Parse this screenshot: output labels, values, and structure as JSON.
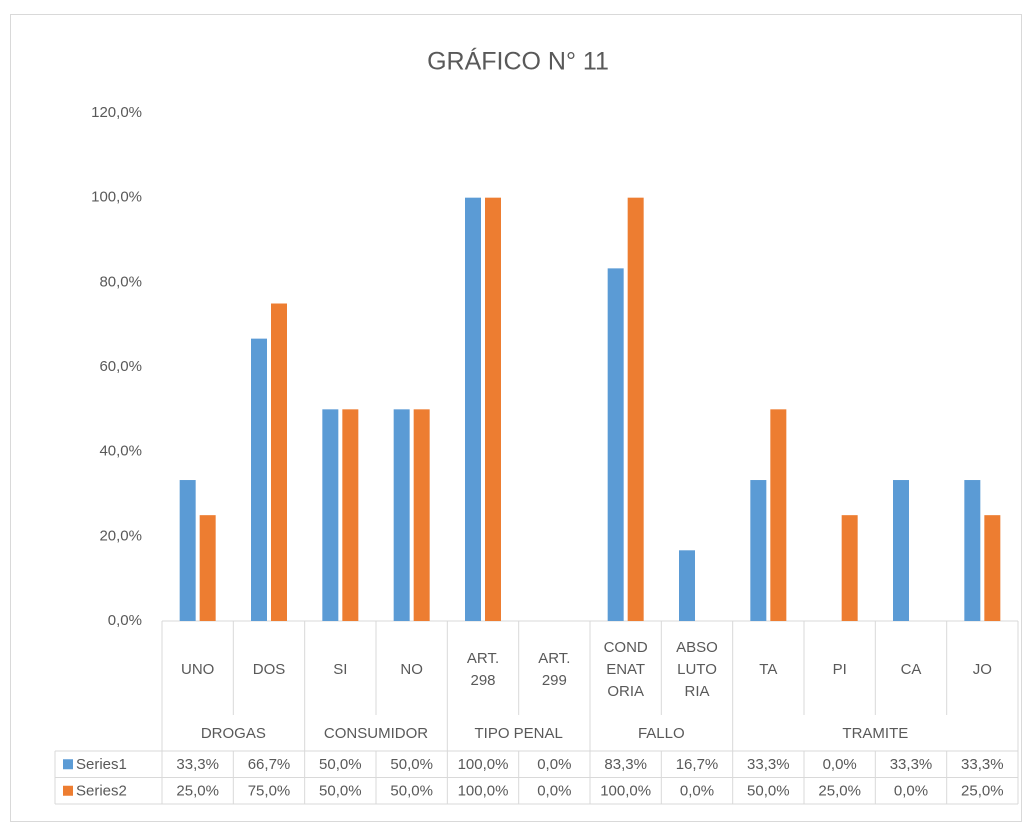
{
  "chart_data": {
    "type": "bar",
    "title": "GRÁFICO N° 11",
    "groups": [
      {
        "label": "DROGAS",
        "categories": [
          "UNO",
          "DOS"
        ]
      },
      {
        "label": "CONSUMIDOR",
        "categories": [
          "SI",
          "NO"
        ]
      },
      {
        "label": "TIPO PENAL",
        "categories": [
          "ART. 298",
          "ART. 299"
        ]
      },
      {
        "label": "FALLO",
        "categories": [
          "CONDENATORIA",
          "ABSOLUTORIA"
        ]
      },
      {
        "label": "TRAMITE",
        "categories": [
          "TA",
          "PI",
          "CA",
          "JO"
        ]
      }
    ],
    "series": [
      {
        "name": "Series1",
        "color": "#5b9bd5",
        "values": [
          33.3,
          66.7,
          50,
          50,
          100,
          0,
          83.3,
          16.7,
          33.3,
          0,
          33.3,
          33.3
        ],
        "value_labels": [
          "33,3%",
          "66,7%",
          "50,0%",
          "50,0%",
          "100,0%",
          "0,0%",
          "83,3%",
          "16,7%",
          "33,3%",
          "0,0%",
          "33,3%",
          "33,3%"
        ]
      },
      {
        "name": "Series2",
        "color": "#ed7d31",
        "values": [
          25,
          75,
          50,
          50,
          100,
          0,
          100,
          0,
          50,
          25,
          0,
          25
        ],
        "value_labels": [
          "25,0%",
          "75,0%",
          "50,0%",
          "50,0%",
          "100,0%",
          "0,0%",
          "100,0%",
          "0,0%",
          "50,0%",
          "25,0%",
          "0,0%",
          "25,0%"
        ]
      }
    ],
    "ylim": [
      0,
      120
    ],
    "yticks": [
      {
        "value": 0,
        "label": "0,0%"
      },
      {
        "value": 20,
        "label": "20,0%"
      },
      {
        "value": 40,
        "label": "40,0%"
      },
      {
        "value": 60,
        "label": "60,0%"
      },
      {
        "value": 80,
        "label": "80,0%"
      },
      {
        "value": 100,
        "label": "100,0%"
      },
      {
        "value": 120,
        "label": "120,0%"
      }
    ],
    "grid": false
  }
}
